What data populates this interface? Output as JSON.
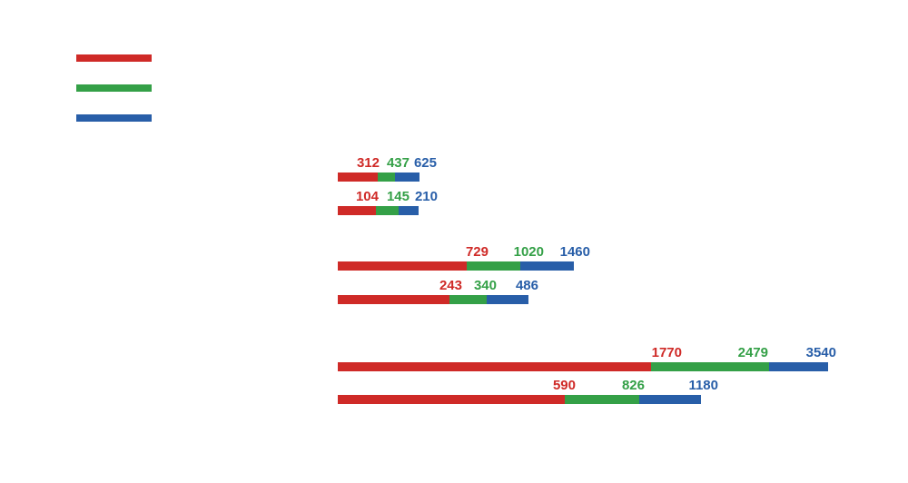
{
  "chart_data": {
    "type": "bar",
    "orientation": "horizontal",
    "stacked": true,
    "title": "",
    "xlabel": "",
    "ylabel": "",
    "grid": false,
    "legend_placement": "top-left",
    "colors": {
      "series1": "#cf2a27",
      "series2": "#34a047",
      "series3": "#285ea8"
    },
    "series": [
      {
        "name": "series1",
        "color": "#cf2a27",
        "values": [
          312,
          104,
          729,
          243,
          1770,
          590
        ]
      },
      {
        "name": "series2",
        "color": "#34a047",
        "values": [
          437,
          145,
          1020,
          340,
          2479,
          826
        ]
      },
      {
        "name": "series3",
        "color": "#285ea8",
        "values": [
          625,
          210,
          1460,
          486,
          3540,
          1180
        ]
      }
    ],
    "labels": [
      [
        "312",
        "437",
        "625"
      ],
      [
        "104",
        "145",
        "210"
      ],
      [
        "729",
        "1020",
        "1460"
      ],
      [
        "243",
        "340",
        "486"
      ],
      [
        "1770",
        "2479",
        "3540"
      ],
      [
        "590",
        "826",
        "1180"
      ]
    ]
  }
}
